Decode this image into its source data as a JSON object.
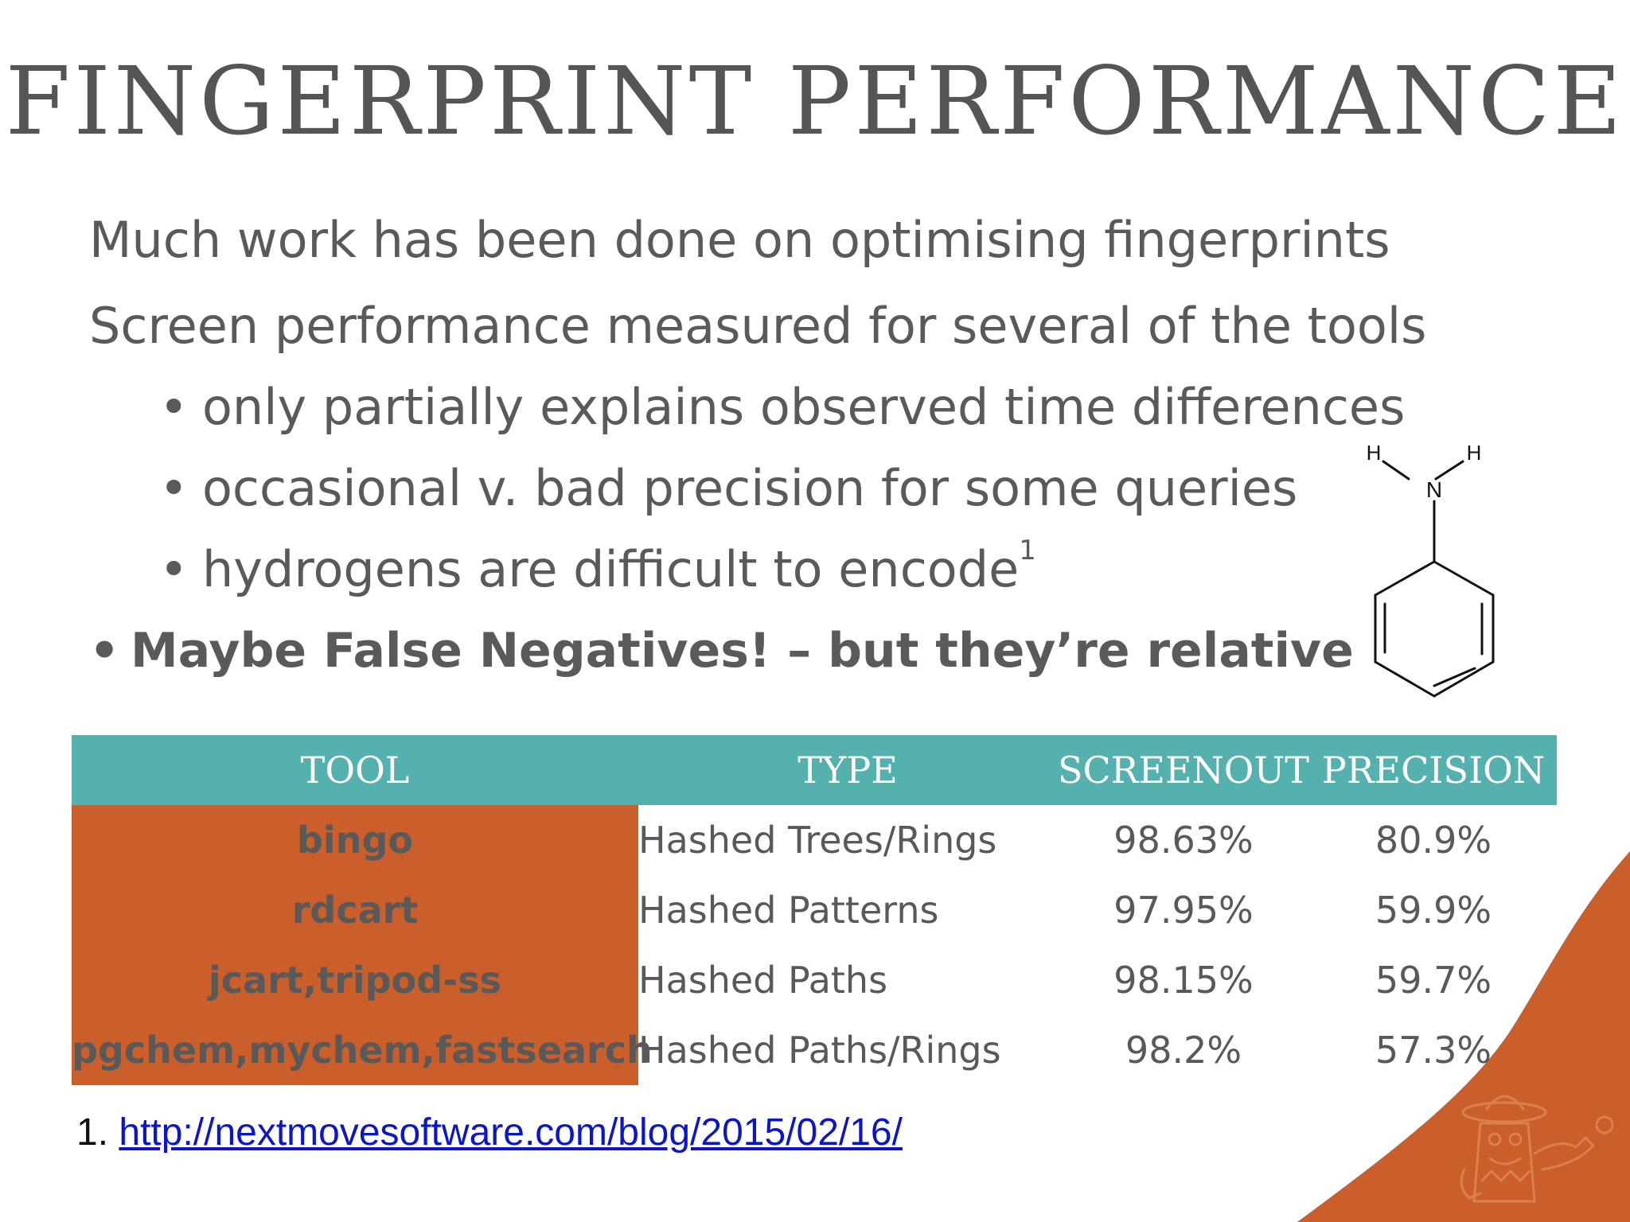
{
  "slide": {
    "title": "FINGERPRINT PERFORMANCE",
    "lines": [
      "Much work has been done on optimising fingerprints",
      "Screen performance measured for several of the tools",
      "only partially explains observed time differences",
      "occasional v. bad precision for some queries",
      "hydrogens are difficult to encode",
      "Maybe False Negatives! – but they’re relative"
    ],
    "superscript": "1",
    "bullet": "•"
  },
  "molecule": {
    "atom_n": "N",
    "atom_h": "H"
  },
  "table": {
    "headers": [
      "TOOL",
      "TYPE",
      "SCREENOUT",
      "PRECISION"
    ],
    "rows": [
      [
        "bingo",
        "Hashed Trees/Rings",
        "98.63%",
        "80.9%"
      ],
      [
        "rdcart",
        "Hashed Patterns",
        "97.95%",
        "59.9%"
      ],
      [
        "jcart,tripod-ss",
        "Hashed Paths",
        "98.15%",
        "59.7%"
      ],
      [
        "pgchem,mychem,fastsearch",
        "Hashed Paths/Rings",
        "98.2%",
        "57.3%"
      ]
    ]
  },
  "footnote": {
    "number": "1.",
    "link": "http://nextmovesoftware.com/blog/2015/02/16/"
  },
  "colors": {
    "accent_teal": "#55b1ae",
    "accent_orange": "#cb5f2b",
    "text": "#575757"
  }
}
